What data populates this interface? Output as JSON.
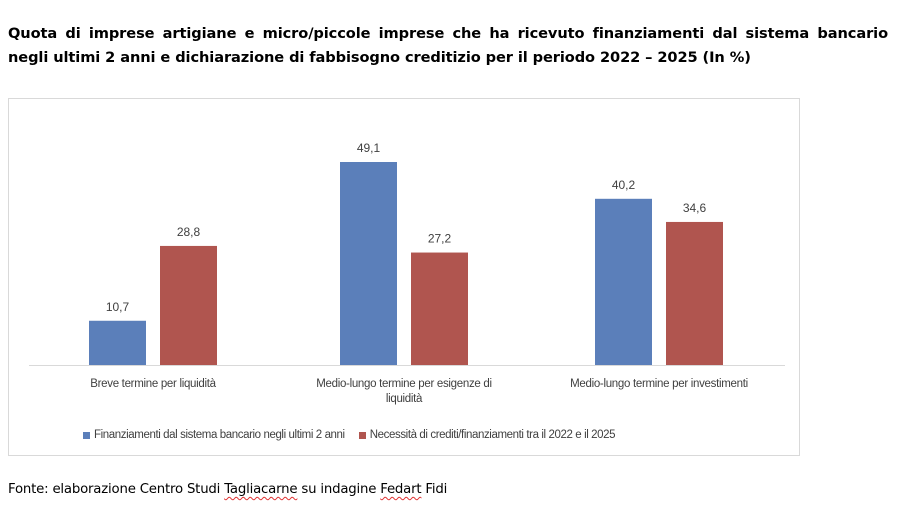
{
  "title": "Quota di imprese artigiane e micro/piccole imprese che ha ricevuto finanziamenti dal sistema bancario negli ultimi 2 anni e dichiarazione di fabbisogno creditizio per il periodo 2022 – 2025 (In %)",
  "source": {
    "prefix": "Fonte: elaborazione Centro Studi ",
    "word1": "Tagliacarne",
    "middle": " su indagine ",
    "word2": "Fedart",
    "suffix": " Fidi"
  },
  "chart_data": {
    "type": "bar",
    "categories": [
      [
        "Breve termine per liquidità"
      ],
      [
        "Medio-lungo termine per esigenze di",
        "liquidità"
      ],
      [
        "Medio-lungo termine per investimenti"
      ]
    ],
    "series": [
      {
        "name": "Finanziamenti dal sistema bancario negli ultimi 2 anni",
        "color": "#5b7fba",
        "values": [
          10.7,
          49.1,
          40.2
        ]
      },
      {
        "name": "Necessità di crediti/finanziamenti tra il 2022 e il 2025",
        "color": "#b0554f",
        "values": [
          28.8,
          27.2,
          34.6
        ]
      }
    ],
    "value_labels": [
      [
        "10,7",
        "49,1",
        "40,2"
      ],
      [
        "28,8",
        "27,2",
        "34,6"
      ]
    ],
    "ylim": [
      0,
      50
    ],
    "grid": false,
    "legend_position": "bottom"
  }
}
